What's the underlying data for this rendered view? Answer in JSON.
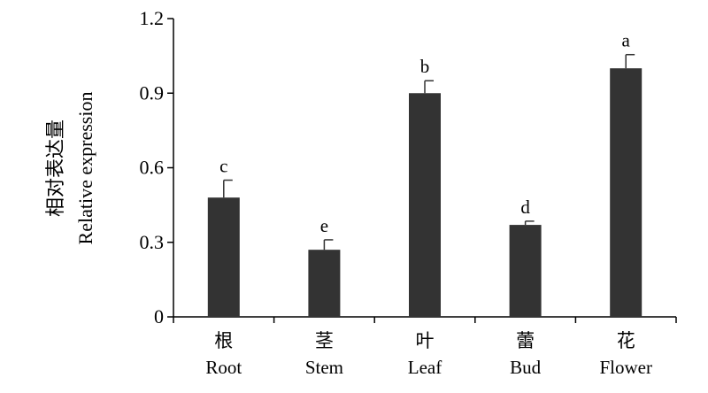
{
  "chart_data": {
    "type": "bar",
    "categories": [
      {
        "cn": "根",
        "en": "Root"
      },
      {
        "cn": "茎",
        "en": "Stem"
      },
      {
        "cn": "叶",
        "en": "Leaf"
      },
      {
        "cn": "蕾",
        "en": "Bud"
      },
      {
        "cn": "花",
        "en": "Flower"
      }
    ],
    "values": [
      0.48,
      0.27,
      0.9,
      0.37,
      1.0
    ],
    "errors": [
      0.07,
      0.04,
      0.05,
      0.015,
      0.055
    ],
    "significance": [
      "c",
      "e",
      "b",
      "d",
      "a"
    ],
    "ylabel_cn": "相对表达量",
    "ylabel_en": "Relative expression",
    "ylim": [
      0,
      1.2
    ],
    "yticks": [
      {
        "value": 0,
        "label": "0"
      },
      {
        "value": 0.3,
        "label": "0.3"
      },
      {
        "value": 0.6,
        "label": "0.6"
      },
      {
        "value": 0.9,
        "label": "0.9"
      },
      {
        "value": 1.2,
        "label": "1.2"
      }
    ],
    "bar_color": "#333333",
    "grid": false,
    "legend": "none"
  }
}
